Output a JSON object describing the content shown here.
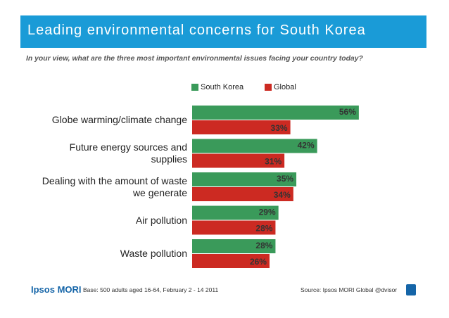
{
  "header": {
    "title": "Leading environmental concerns for South Korea",
    "question": "In your view, what are the three most important environmental issues facing your country today?"
  },
  "legend": {
    "items": [
      {
        "label": "South Korea",
        "color": "#3a9a5a"
      },
      {
        "label": "Global",
        "color": "#cc2a22"
      }
    ]
  },
  "chart_data": {
    "type": "bar",
    "orientation": "horizontal",
    "categories": [
      "Globe warming/climate change",
      "Future energy sources and supplies",
      "Dealing with the amount of waste we generate",
      "Air pollution",
      "Waste pollution"
    ],
    "category_lines": [
      [
        "Globe warming/climate change"
      ],
      [
        "Future energy sources and",
        "supplies"
      ],
      [
        "Dealing with the amount of waste",
        "we generate"
      ],
      [
        "Air pollution"
      ],
      [
        "Waste pollution"
      ]
    ],
    "series": [
      {
        "name": "South Korea",
        "color": "#3a9a5a",
        "values": [
          56,
          42,
          35,
          29,
          28
        ]
      },
      {
        "name": "Global",
        "color": "#cc2a22",
        "values": [
          33,
          31,
          34,
          28,
          26
        ]
      }
    ],
    "value_suffix": "%",
    "xlim": [
      0,
      60
    ],
    "grid": false,
    "legend_position": "top"
  },
  "footer": {
    "logo": "Ipsos MORI",
    "base": "Base: 500 adults aged 16-64, February 2 - 14 2011",
    "source": "Source: Ipsos MORI Global @dvisor"
  }
}
